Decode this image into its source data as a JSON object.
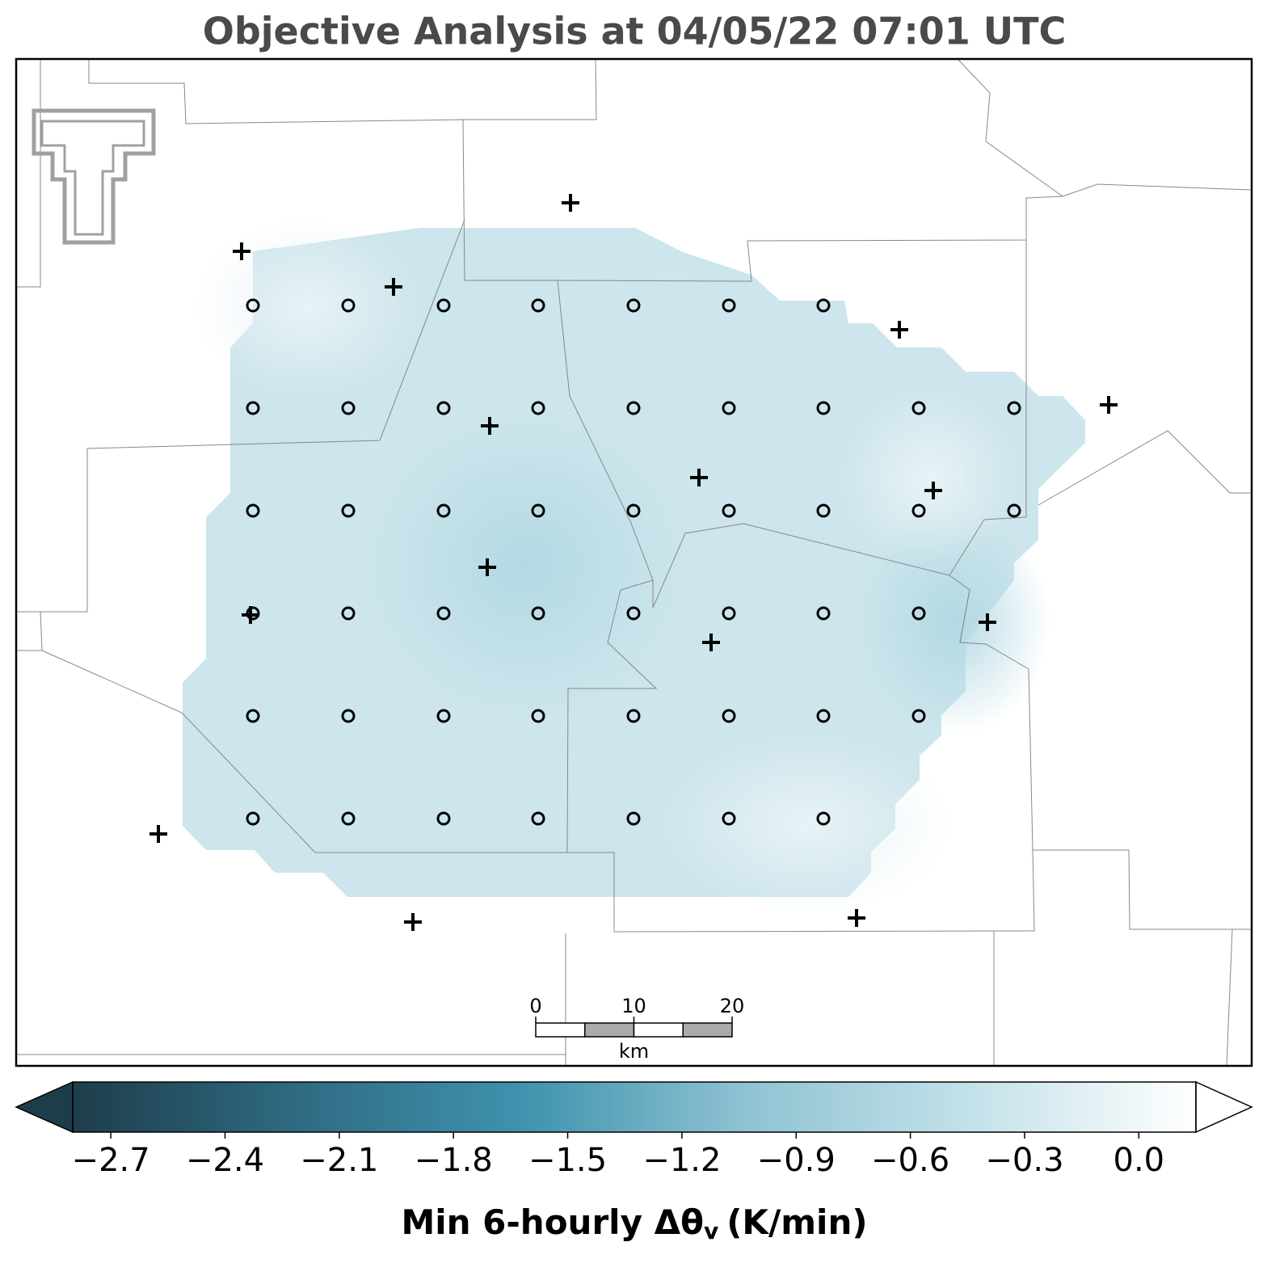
{
  "chart_data": {
    "type": "contour-map",
    "title": "Objective Analysis at 04/05/22 07:01 UTC",
    "colorbar": {
      "lim": [
        -2.8,
        0.15
      ],
      "extend": "both",
      "colors": [
        "#1e3d4b",
        "#2f6b82",
        "#3f92ae",
        "#8fc3d3",
        "#c3e1e9",
        "#ffffff"
      ],
      "ticks": [
        {
          "value": -2.7,
          "label": "−2.7"
        },
        {
          "value": -2.4,
          "label": "−2.4"
        },
        {
          "value": -2.1,
          "label": "−2.1"
        },
        {
          "value": -1.8,
          "label": "−1.8"
        },
        {
          "value": -1.5,
          "label": "−1.5"
        },
        {
          "value": -1.2,
          "label": "−1.2"
        },
        {
          "value": -0.9,
          "label": "−0.9"
        },
        {
          "value": -0.6,
          "label": "−0.6"
        },
        {
          "value": -0.3,
          "label": "−0.3"
        },
        {
          "value": 0.0,
          "label": "0.0"
        }
      ],
      "label": "Min 6-hourly Δθ",
      "label_subscript": "v",
      "label_units": "(K/min)"
    },
    "scale_bar": {
      "ticks": [
        0,
        10,
        20
      ],
      "unit": "km"
    }
  }
}
